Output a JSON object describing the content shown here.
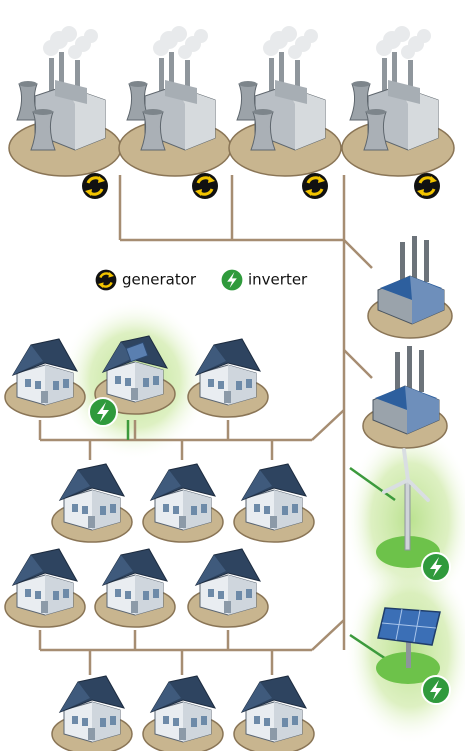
{
  "legend": {
    "items": [
      {
        "label": "generator"
      },
      {
        "label": "inverter"
      }
    ]
  }
}
